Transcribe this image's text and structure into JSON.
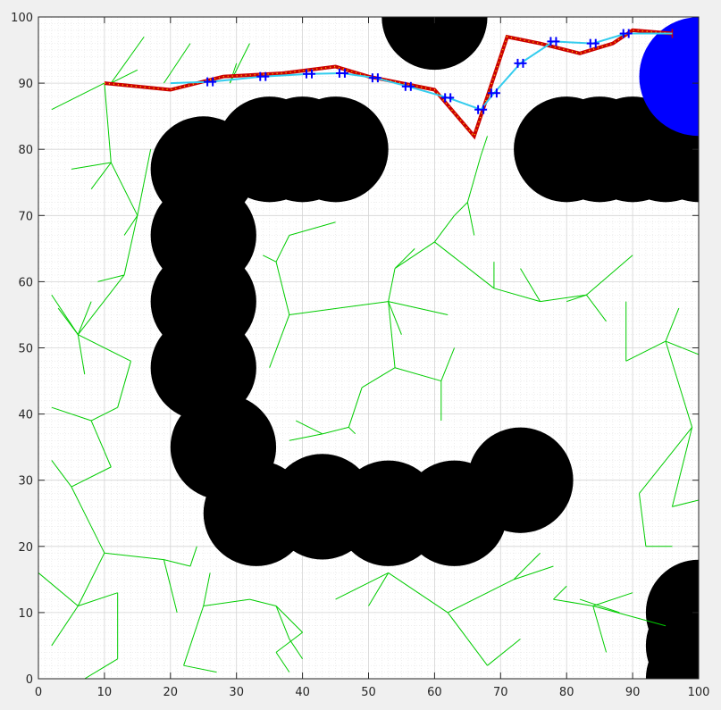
{
  "chart_data": {
    "type": "scatter",
    "title": "",
    "xlabel": "",
    "ylabel": "",
    "xlim": [
      0,
      100
    ],
    "ylim": [
      0,
      100
    ],
    "grid": true,
    "minor_grid": true,
    "x_ticks": [
      "0",
      "10",
      "20",
      "30",
      "40",
      "50",
      "60",
      "70",
      "80",
      "90",
      "100"
    ],
    "y_ticks": [
      "0",
      "10",
      "20",
      "30",
      "40",
      "50",
      "60",
      "70",
      "80",
      "90",
      "100"
    ],
    "colors": {
      "obstacle": "#000000",
      "goal": "#0000ff",
      "tree": "#00cc00",
      "raw_path": "#cc0000",
      "raw_path_dots": "#ffcc00",
      "smooth_path": "#33ccee",
      "waypoints": "#0000ff"
    },
    "obstacles": [
      {
        "x": 60,
        "y": 100,
        "r": 8
      },
      {
        "x": 25,
        "y": 77,
        "r": 8
      },
      {
        "x": 35,
        "y": 80,
        "r": 8
      },
      {
        "x": 40,
        "y": 80,
        "r": 8
      },
      {
        "x": 45,
        "y": 80,
        "r": 8
      },
      {
        "x": 25,
        "y": 67,
        "r": 8
      },
      {
        "x": 25,
        "y": 57,
        "r": 8
      },
      {
        "x": 25,
        "y": 47,
        "r": 8
      },
      {
        "x": 28,
        "y": 35,
        "r": 8
      },
      {
        "x": 33,
        "y": 25,
        "r": 8
      },
      {
        "x": 43,
        "y": 26,
        "r": 8
      },
      {
        "x": 53,
        "y": 25,
        "r": 8
      },
      {
        "x": 63,
        "y": 25,
        "r": 8
      },
      {
        "x": 73,
        "y": 30,
        "r": 8
      },
      {
        "x": 80,
        "y": 80,
        "r": 8
      },
      {
        "x": 85,
        "y": 80,
        "r": 8
      },
      {
        "x": 90,
        "y": 80,
        "r": 8
      },
      {
        "x": 95,
        "y": 80,
        "r": 8
      },
      {
        "x": 100,
        "y": 80,
        "r": 8
      },
      {
        "x": 100,
        "y": 10,
        "r": 8
      },
      {
        "x": 100,
        "y": 5,
        "r": 8
      },
      {
        "x": 100,
        "y": 0,
        "r": 8
      }
    ],
    "goal": {
      "x": 100,
      "y": 91,
      "r": 9
    },
    "tree_edges": [
      [
        [
          10,
          90
        ],
        [
          2,
          86
        ]
      ],
      [
        [
          10,
          90
        ],
        [
          11,
          78
        ]
      ],
      [
        [
          11,
          78
        ],
        [
          8,
          74
        ]
      ],
      [
        [
          11,
          78
        ],
        [
          5,
          77
        ]
      ],
      [
        [
          11,
          78
        ],
        [
          15,
          70
        ]
      ],
      [
        [
          15,
          70
        ],
        [
          17,
          80
        ]
      ],
      [
        [
          15,
          70
        ],
        [
          13,
          61
        ]
      ],
      [
        [
          13,
          61
        ],
        [
          6,
          52
        ]
      ],
      [
        [
          13,
          61
        ],
        [
          9,
          60
        ]
      ],
      [
        [
          6,
          52
        ],
        [
          8,
          57
        ]
      ],
      [
        [
          6,
          52
        ],
        [
          7,
          46
        ]
      ],
      [
        [
          6,
          52
        ],
        [
          14,
          48
        ]
      ],
      [
        [
          14,
          48
        ],
        [
          12,
          41
        ]
      ],
      [
        [
          12,
          41
        ],
        [
          8,
          39
        ]
      ],
      [
        [
          8,
          39
        ],
        [
          2,
          41
        ]
      ],
      [
        [
          8,
          39
        ],
        [
          11,
          32
        ]
      ],
      [
        [
          11,
          32
        ],
        [
          5,
          29
        ]
      ],
      [
        [
          5,
          29
        ],
        [
          2,
          33
        ]
      ],
      [
        [
          5,
          29
        ],
        [
          8,
          23
        ]
      ],
      [
        [
          8,
          23
        ],
        [
          10,
          19
        ]
      ],
      [
        [
          10,
          19
        ],
        [
          6,
          11
        ]
      ],
      [
        [
          10,
          19
        ],
        [
          19,
          18
        ]
      ],
      [
        [
          19,
          18
        ],
        [
          21,
          10
        ]
      ],
      [
        [
          6,
          11
        ],
        [
          0,
          16
        ]
      ],
      [
        [
          6,
          11
        ],
        [
          2,
          5
        ]
      ],
      [
        [
          6,
          11
        ],
        [
          12,
          13
        ]
      ],
      [
        [
          12,
          13
        ],
        [
          12,
          3
        ]
      ],
      [
        [
          12,
          3
        ],
        [
          7,
          0
        ]
      ],
      [
        [
          19,
          18
        ],
        [
          23,
          17
        ]
      ],
      [
        [
          23,
          17
        ],
        [
          24,
          20
        ]
      ],
      [
        [
          11,
          90
        ],
        [
          15,
          92
        ]
      ],
      [
        [
          11,
          90
        ],
        [
          16,
          97
        ]
      ],
      [
        [
          19,
          90
        ],
        [
          23,
          96
        ]
      ],
      [
        [
          29,
          90
        ],
        [
          32,
          96
        ]
      ],
      [
        [
          29,
          90
        ],
        [
          30,
          93
        ]
      ],
      [
        [
          15,
          70
        ],
        [
          13,
          67
        ]
      ],
      [
        [
          6,
          52
        ],
        [
          3,
          56
        ]
      ],
      [
        [
          2,
          58
        ],
        [
          6,
          52
        ]
      ],
      [
        [
          25,
          11
        ],
        [
          26,
          16
        ]
      ],
      [
        [
          25,
          11
        ],
        [
          32,
          12
        ]
      ],
      [
        [
          32,
          12
        ],
        [
          36,
          11
        ]
      ],
      [
        [
          36,
          11
        ],
        [
          38,
          6
        ]
      ],
      [
        [
          38,
          6
        ],
        [
          40,
          3
        ]
      ],
      [
        [
          25,
          11
        ],
        [
          22,
          2
        ]
      ],
      [
        [
          22,
          2
        ],
        [
          27,
          1
        ]
      ],
      [
        [
          36,
          11
        ],
        [
          40,
          7
        ]
      ],
      [
        [
          40,
          7
        ],
        [
          36,
          4
        ]
      ],
      [
        [
          36,
          4
        ],
        [
          38,
          1
        ]
      ],
      [
        [
          45,
          12
        ],
        [
          53,
          16
        ]
      ],
      [
        [
          53,
          16
        ],
        [
          50,
          11
        ]
      ],
      [
        [
          53,
          16
        ],
        [
          62,
          10
        ]
      ],
      [
        [
          62,
          10
        ],
        [
          72,
          15
        ]
      ],
      [
        [
          72,
          15
        ],
        [
          78,
          17
        ]
      ],
      [
        [
          72,
          15
        ],
        [
          76,
          19
        ]
      ],
      [
        [
          62,
          10
        ],
        [
          68,
          2
        ]
      ],
      [
        [
          68,
          2
        ],
        [
          73,
          6
        ]
      ],
      [
        [
          78,
          12
        ],
        [
          84,
          11
        ]
      ],
      [
        [
          84,
          11
        ],
        [
          86,
          4
        ]
      ],
      [
        [
          84,
          11
        ],
        [
          90,
          13
        ]
      ],
      [
        [
          84,
          11
        ],
        [
          95,
          8
        ]
      ],
      [
        [
          78,
          12
        ],
        [
          80,
          14
        ]
      ],
      [
        [
          82,
          12
        ],
        [
          88,
          10
        ]
      ],
      [
        [
          38,
          55
        ],
        [
          36,
          63
        ]
      ],
      [
        [
          36,
          63
        ],
        [
          38,
          67
        ]
      ],
      [
        [
          38,
          67
        ],
        [
          45,
          69
        ]
      ],
      [
        [
          36,
          63
        ],
        [
          34,
          64
        ]
      ],
      [
        [
          38,
          55
        ],
        [
          35,
          47
        ]
      ],
      [
        [
          38,
          55
        ],
        [
          53,
          57
        ]
      ],
      [
        [
          53,
          57
        ],
        [
          55,
          52
        ]
      ],
      [
        [
          53,
          57
        ],
        [
          54,
          62
        ]
      ],
      [
        [
          53,
          57
        ],
        [
          62,
          55
        ]
      ],
      [
        [
          54,
          62
        ],
        [
          57,
          65
        ]
      ],
      [
        [
          54,
          62
        ],
        [
          60,
          66
        ]
      ],
      [
        [
          60,
          66
        ],
        [
          69,
          59
        ]
      ],
      [
        [
          69,
          59
        ],
        [
          76,
          57
        ]
      ],
      [
        [
          76,
          57
        ],
        [
          73,
          62
        ]
      ],
      [
        [
          76,
          57
        ],
        [
          83,
          58
        ]
      ],
      [
        [
          83,
          58
        ],
        [
          90,
          64
        ]
      ],
      [
        [
          83,
          58
        ],
        [
          86,
          54
        ]
      ],
      [
        [
          83,
          58
        ],
        [
          80,
          57
        ]
      ],
      [
        [
          60,
          66
        ],
        [
          63,
          70
        ]
      ],
      [
        [
          63,
          70
        ],
        [
          65,
          72
        ]
      ],
      [
        [
          65,
          72
        ],
        [
          66,
          67
        ]
      ],
      [
        [
          65,
          72
        ],
        [
          67,
          79
        ]
      ],
      [
        [
          67,
          79
        ],
        [
          68,
          82
        ]
      ],
      [
        [
          69,
          59
        ],
        [
          69,
          63
        ]
      ],
      [
        [
          53,
          57
        ],
        [
          54,
          47
        ]
      ],
      [
        [
          54,
          47
        ],
        [
          49,
          44
        ]
      ],
      [
        [
          54,
          47
        ],
        [
          61,
          45
        ]
      ],
      [
        [
          61,
          45
        ],
        [
          63,
          50
        ]
      ],
      [
        [
          61,
          45
        ],
        [
          61,
          39
        ]
      ],
      [
        [
          49,
          44
        ],
        [
          47,
          38
        ]
      ],
      [
        [
          47,
          38
        ],
        [
          43,
          37
        ]
      ],
      [
        [
          43,
          37
        ],
        [
          38,
          36
        ]
      ],
      [
        [
          43,
          37
        ],
        [
          39,
          39
        ]
      ],
      [
        [
          47,
          38
        ],
        [
          48,
          37
        ]
      ],
      [
        [
          89,
          48
        ],
        [
          95,
          51
        ]
      ],
      [
        [
          95,
          51
        ],
        [
          97,
          56
        ]
      ],
      [
        [
          95,
          51
        ],
        [
          100,
          49
        ]
      ],
      [
        [
          95,
          51
        ],
        [
          99,
          38
        ]
      ],
      [
        [
          99,
          38
        ],
        [
          91,
          28
        ]
      ],
      [
        [
          91,
          28
        ],
        [
          92,
          20
        ]
      ],
      [
        [
          92,
          20
        ],
        [
          96,
          20
        ]
      ],
      [
        [
          99,
          38
        ],
        [
          96,
          26
        ]
      ],
      [
        [
          96,
          26
        ],
        [
          100,
          27
        ]
      ],
      [
        [
          89,
          48
        ],
        [
          89,
          57
        ]
      ]
    ],
    "raw_path": [
      [
        10,
        90
      ],
      [
        20,
        89
      ],
      [
        28,
        91
      ],
      [
        37,
        91.5
      ],
      [
        45,
        92.5
      ],
      [
        50,
        91
      ],
      [
        55,
        90
      ],
      [
        60,
        89
      ],
      [
        66,
        82
      ],
      [
        71,
        97
      ],
      [
        76,
        96
      ],
      [
        82,
        94.5
      ],
      [
        87,
        96
      ],
      [
        90,
        98
      ],
      [
        96,
        97.5
      ]
    ],
    "smooth_path": [
      [
        20,
        90
      ],
      [
        26,
        90.2
      ],
      [
        34,
        91
      ],
      [
        41,
        91.4
      ],
      [
        46,
        91.5
      ],
      [
        51,
        90.8
      ],
      [
        56,
        89.5
      ],
      [
        62,
        87.8
      ],
      [
        67,
        86
      ],
      [
        69,
        88.5
      ],
      [
        73,
        93
      ],
      [
        78,
        96.3
      ],
      [
        84,
        96
      ],
      [
        89,
        97.5
      ],
      [
        96,
        97.5
      ]
    ],
    "waypoints": [
      [
        26,
        90.2
      ],
      [
        34,
        91
      ],
      [
        41,
        91.4
      ],
      [
        46,
        91.5
      ],
      [
        51,
        90.8
      ],
      [
        56,
        89.5
      ],
      [
        62,
        87.8
      ],
      [
        67,
        86
      ],
      [
        69,
        88.5
      ],
      [
        73,
        93
      ],
      [
        78,
        96.3
      ],
      [
        84,
        96
      ],
      [
        89,
        97.5
      ]
    ]
  }
}
